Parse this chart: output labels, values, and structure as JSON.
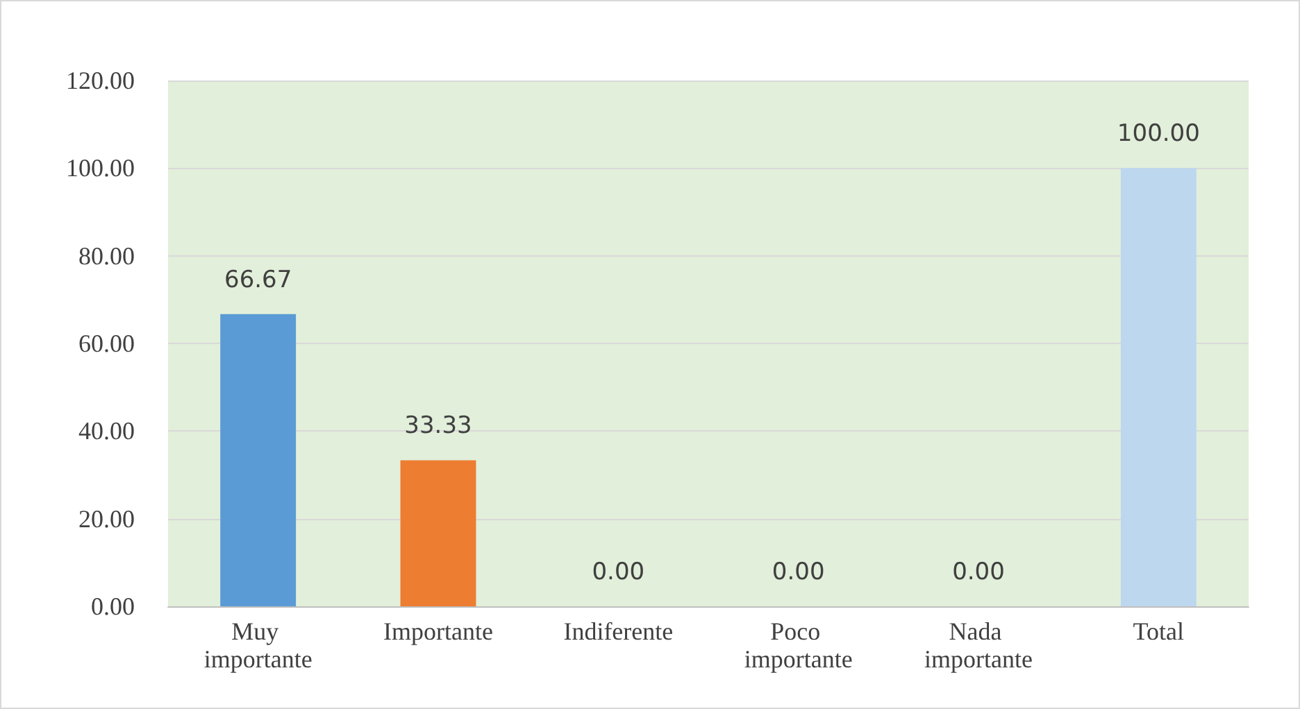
{
  "chart_data": {
    "type": "bar",
    "categories": [
      "Muy importante",
      "Importante",
      "Indiferente",
      "Poco importante",
      "Nada importante",
      "Total"
    ],
    "values": [
      66.67,
      33.33,
      0,
      0,
      0,
      100
    ],
    "colors": [
      "#5b9bd5",
      "#ed7d31",
      "#a5a5a5",
      "#ffc000",
      "#4472c4",
      "#bdd7ee"
    ],
    "value_labels": [
      "66.67",
      "33.33",
      "0.00",
      "0.00",
      "0.00",
      "100.00"
    ],
    "ylim": [
      0,
      120
    ],
    "yticks": [
      {
        "value": 0,
        "label": "0.00"
      },
      {
        "value": 20,
        "label": "20.00"
      },
      {
        "value": 40,
        "label": "40.00"
      },
      {
        "value": 60,
        "label": "60.00"
      },
      {
        "value": 80,
        "label": "80.00"
      },
      {
        "value": 100,
        "label": "100.00"
      },
      {
        "value": 120,
        "label": "120.00"
      }
    ],
    "grid": "y"
  }
}
